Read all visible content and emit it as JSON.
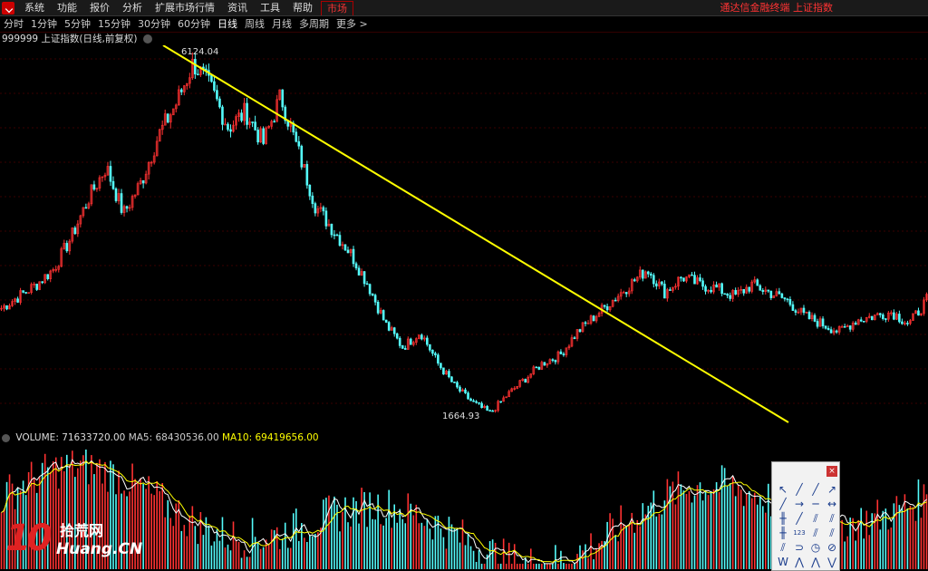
{
  "menubar": {
    "items": [
      "系统",
      "功能",
      "报价",
      "分析",
      "扩展市场行情",
      "资讯",
      "工具",
      "帮助"
    ],
    "market_tab": "市场",
    "title": "通达信金融终端 上证指数"
  },
  "periodbar": {
    "tabs": [
      "分时",
      "1分钟",
      "5分钟",
      "15分钟",
      "30分钟",
      "60分钟",
      "日线",
      "周线",
      "月线",
      "多周期",
      "更多 >"
    ],
    "active": "日线"
  },
  "chart_header": {
    "label": "999999 上证指数(日线,前复权)"
  },
  "volume_header": {
    "volume": "VOLUME: 71633720.00",
    "ma5": "MA5: 68430536.00",
    "ma10": "MA10: 69419656.00"
  },
  "watermark": {
    "number": "10",
    "cn": "拾荒网",
    "en": "Huang.CN"
  },
  "toolbox": {
    "close_label": "×"
  },
  "colors": {
    "up": "#ff3232",
    "down": "#54fcfc",
    "trendline": "#ffff00",
    "ma5": "#ffffff",
    "ma10": "#ffff00"
  },
  "chart_data": {
    "type": "candlestick",
    "title": "",
    "annotations": [
      {
        "label": "6124.04",
        "value": 6124.04
      },
      {
        "label": "1664.93",
        "value": 1664.93
      }
    ],
    "series": [
      {
        "values": [
          3000,
          3150,
          3300,
          3500,
          3900,
          4400,
          4800,
          4200,
          4600,
          5200,
          5600,
          6124,
          5800,
          5300,
          5500,
          5100,
          5700,
          5000,
          4300,
          4000,
          3700,
          3300,
          2800,
          2500,
          2700,
          2300,
          2000,
          1800,
          1664.93,
          1900,
          2100,
          2300,
          2400,
          2700,
          2900,
          3100,
          3300,
          3500,
          3200,
          3400,
          3300,
          3250,
          3150,
          3300,
          3200,
          3100,
          2900,
          2800,
          2700,
          2850,
          2900,
          2950,
          2800,
          3100
        ]
      }
    ]
  }
}
